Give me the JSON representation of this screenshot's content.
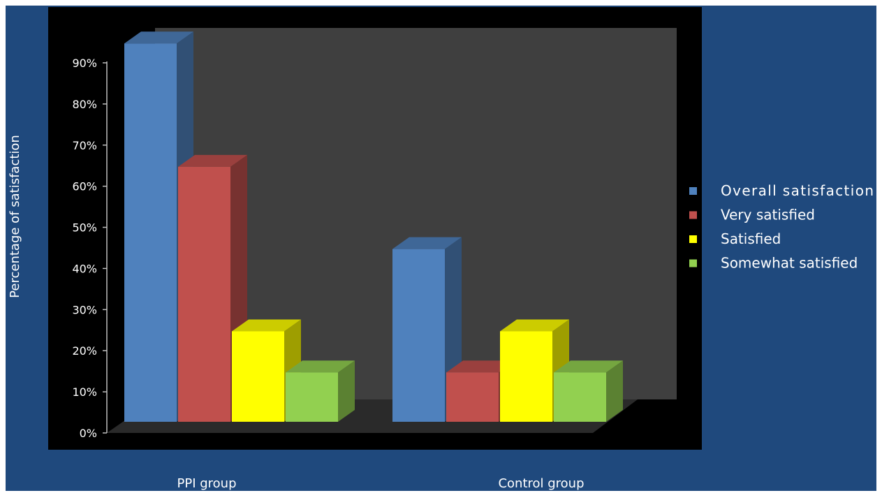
{
  "chart_data": {
    "type": "bar",
    "title": "",
    "xlabel": "",
    "ylabel": "Percentage of satisfaction",
    "ylim": [
      0,
      0.9
    ],
    "yticks": [
      0,
      0.1,
      0.2,
      0.3,
      0.4,
      0.5,
      0.6,
      0.7,
      0.8,
      0.9
    ],
    "ytick_labels": [
      "0%",
      "10%",
      "20%",
      "30%",
      "40%",
      "50%",
      "60%",
      "70%",
      "80%",
      "90%"
    ],
    "categories": [
      "PPI group",
      "Control group"
    ],
    "series": [
      {
        "name": "Overall satisfaction",
        "color": "#4f81bd",
        "values": [
          0.92,
          0.42
        ]
      },
      {
        "name": "Very satisfied",
        "color": "#c0504d",
        "values": [
          0.62,
          0.12
        ]
      },
      {
        "name": "Satisfied",
        "color": "#ffff00",
        "values": [
          0.22,
          0.22
        ]
      },
      {
        "name": "Somewhat satisfied",
        "color": "#92d050",
        "values": [
          0.12,
          0.12
        ]
      }
    ],
    "grid": false,
    "legend_position": "right",
    "style": "3d-clustered-column",
    "colors": {
      "background": "#1f497d",
      "plot_area": "#000000",
      "back_wall": "#3f3f3f",
      "text": "#ffffff"
    }
  }
}
